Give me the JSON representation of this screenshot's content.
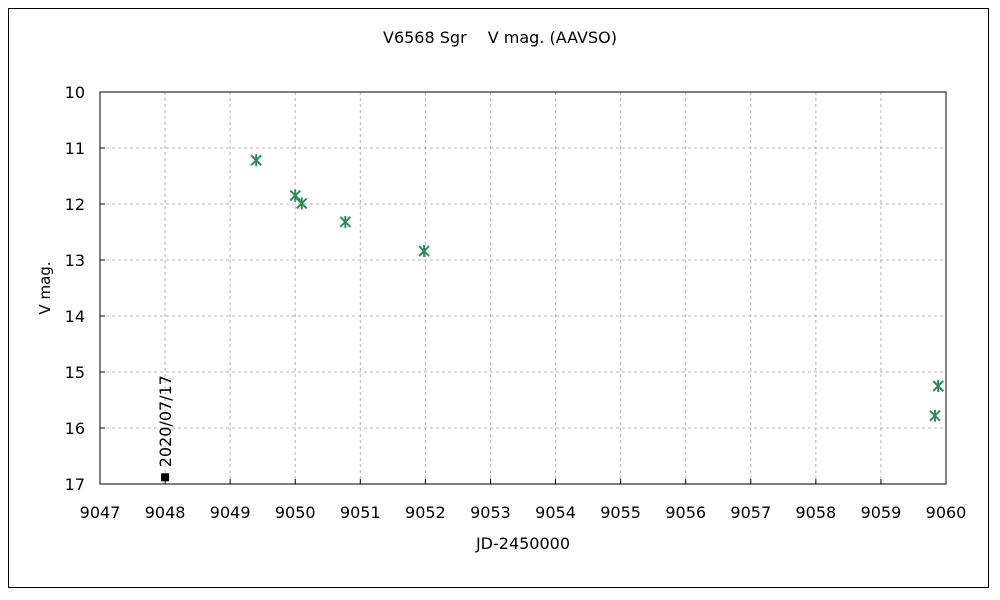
{
  "chart_data": {
    "type": "scatter",
    "title": "V6568 Sgr　 V mag. (AAVSO)",
    "xlabel": "JD-2450000",
    "ylabel": "V mag.",
    "xlim": [
      9047,
      9060
    ],
    "ylim": [
      10,
      17
    ],
    "y_inverted": true,
    "grid": true,
    "xticks": [
      9047,
      9048,
      9049,
      9050,
      9051,
      9052,
      9053,
      9054,
      9055,
      9056,
      9057,
      9058,
      9059,
      9060
    ],
    "yticks": [
      10,
      11,
      12,
      13,
      14,
      15,
      16,
      17
    ],
    "series": [
      {
        "marker": "asterisk",
        "color": "#2e8b57",
        "points": [
          {
            "x": 9049.4,
            "y": 11.22
          },
          {
            "x": 9050.0,
            "y": 11.85
          },
          {
            "x": 9050.1,
            "y": 11.99
          },
          {
            "x": 9050.77,
            "y": 12.32
          },
          {
            "x": 9051.98,
            "y": 12.84
          },
          {
            "x": 9059.83,
            "y": 15.78
          },
          {
            "x": 9059.88,
            "y": 15.25
          }
        ]
      }
    ],
    "annotations": [
      {
        "text": "2020/07/17",
        "x": 9048.0,
        "y": 16.88,
        "marker": "square",
        "color": "#000000"
      }
    ]
  }
}
